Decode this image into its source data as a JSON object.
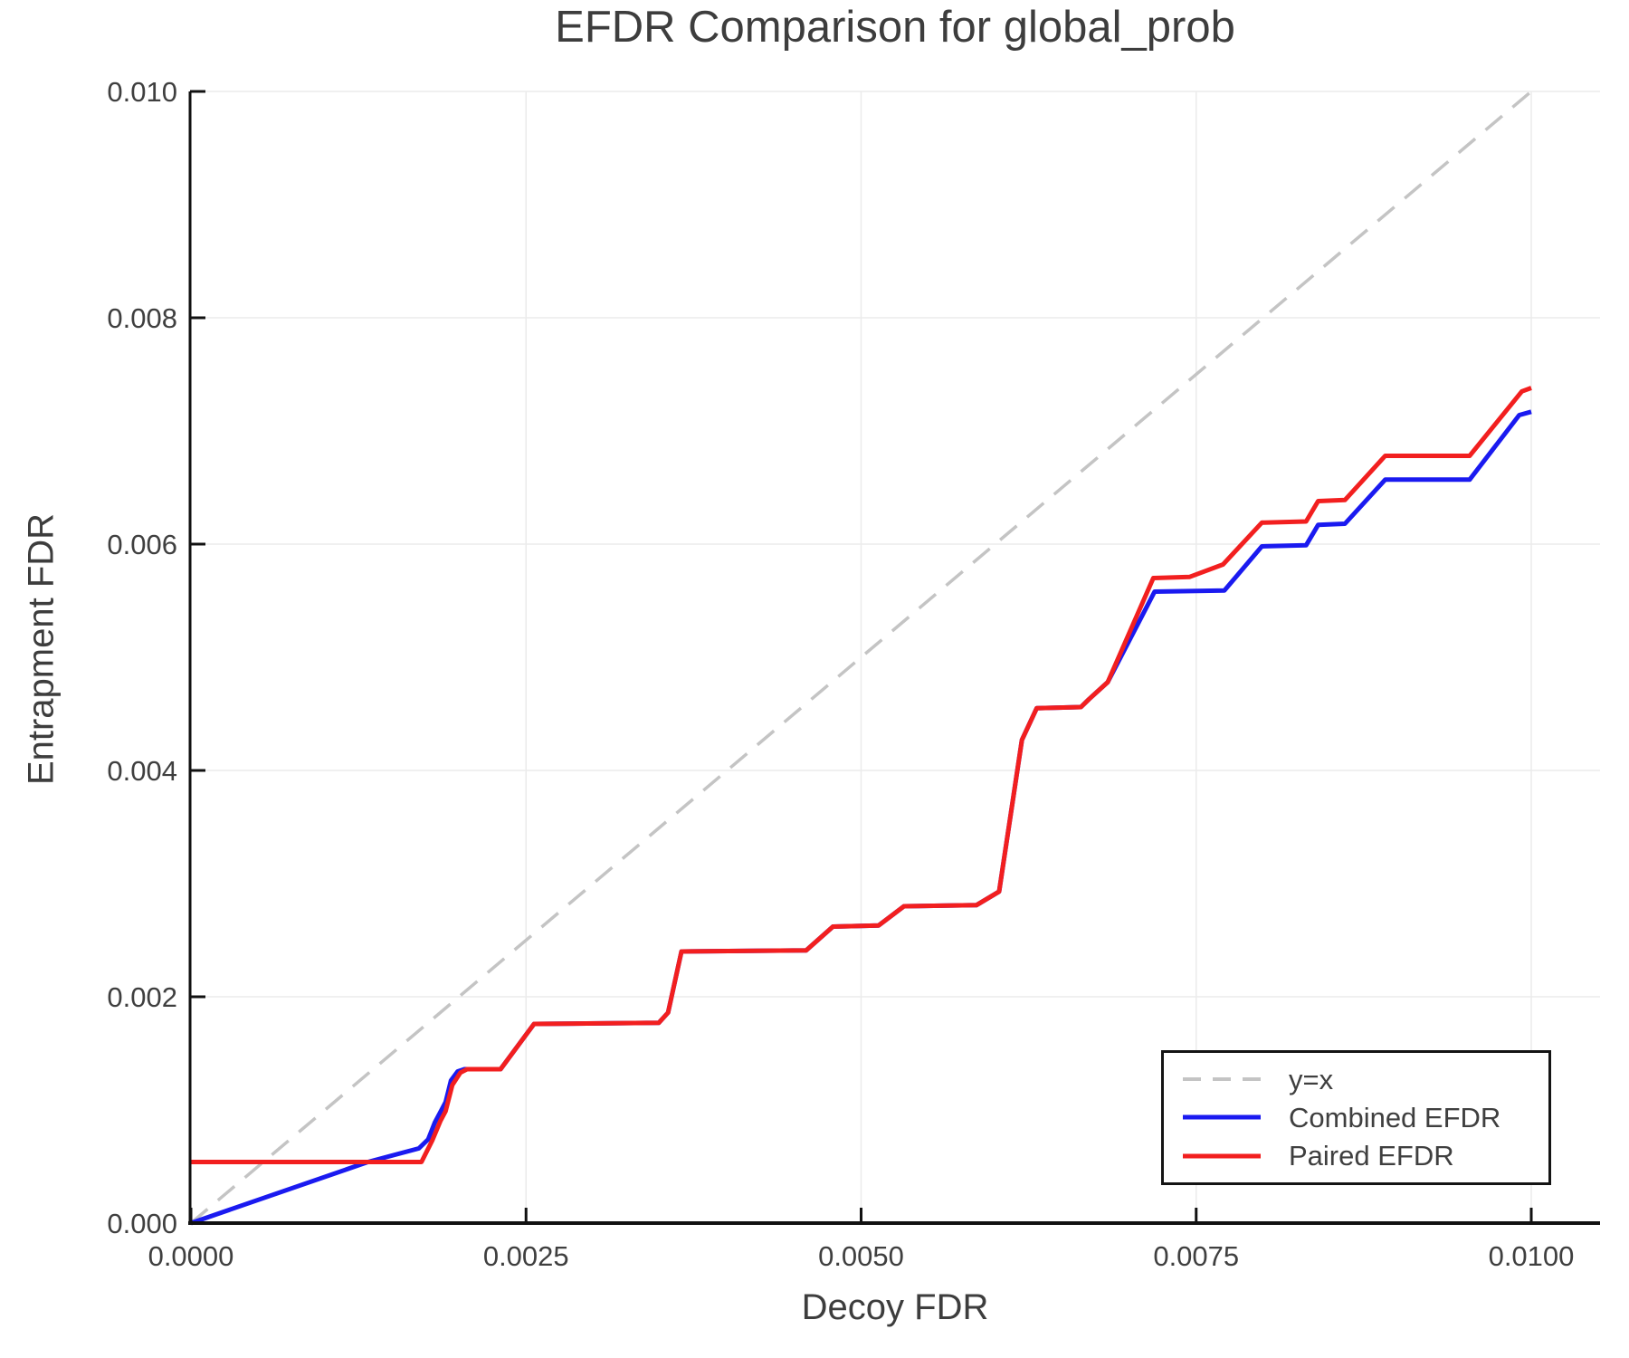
{
  "figure": {
    "background": "#ffffff",
    "text_color": "#3d3d3d",
    "tick_label_color": "#3f3f3f",
    "axis_color": "#111111",
    "grid_color": "#ebebeb"
  },
  "chart_data": {
    "type": "line",
    "title": "EFDR Comparison for global_prob",
    "xlabel": "Decoy FDR",
    "ylabel": "Entrapment FDR",
    "xlim": [
      0,
      0.01052
    ],
    "ylim": [
      0,
      0.01
    ],
    "grid": true,
    "legend_position": "lower right",
    "x_ticks": {
      "values": [
        0,
        0.0025,
        0.005,
        0.0075,
        0.01
      ],
      "labels": [
        "0.0000",
        "0.0025",
        "0.0050",
        "0.0075",
        "0.0100"
      ]
    },
    "y_ticks": {
      "values": [
        0,
        0.002,
        0.004,
        0.006,
        0.008,
        0.01
      ],
      "labels": [
        "0.000",
        "0.002",
        "0.004",
        "0.006",
        "0.008",
        "0.010"
      ]
    },
    "series": [
      {
        "id": "y-equals-x",
        "name": "y=x",
        "color": "#c4c4c4",
        "style": "dashed",
        "points": [
          [
            0,
            0
          ],
          [
            0.01,
            0.01
          ]
        ]
      },
      {
        "id": "combined-efdr",
        "name": "Combined EFDR",
        "color": "#1a1af0",
        "style": "solid",
        "points": [
          [
            0.0,
            0.0
          ],
          [
            0.00132,
            0.00054
          ],
          [
            0.0017,
            0.00066
          ],
          [
            0.00177,
            0.00074
          ],
          [
            0.00182,
            0.00089
          ],
          [
            0.00186,
            0.00098
          ],
          [
            0.0019,
            0.00107
          ],
          [
            0.00194,
            0.00126
          ],
          [
            0.00199,
            0.00134
          ],
          [
            0.00204,
            0.00136
          ],
          [
            0.00231,
            0.00136
          ],
          [
            0.00256,
            0.00176
          ],
          [
            0.00349,
            0.00177
          ],
          [
            0.00356,
            0.00186
          ],
          [
            0.00366,
            0.0024
          ],
          [
            0.00459,
            0.00241
          ],
          [
            0.00479,
            0.00262
          ],
          [
            0.00513,
            0.00263
          ],
          [
            0.00532,
            0.0028
          ],
          [
            0.00586,
            0.00281
          ],
          [
            0.00603,
            0.00293
          ],
          [
            0.0062,
            0.00427
          ],
          [
            0.00631,
            0.00455
          ],
          [
            0.00664,
            0.00456
          ],
          [
            0.0067,
            0.00463
          ],
          [
            0.00684,
            0.00478
          ],
          [
            0.00719,
            0.00558
          ],
          [
            0.00771,
            0.00559
          ],
          [
            0.00799,
            0.00598
          ],
          [
            0.00832,
            0.00599
          ],
          [
            0.00841,
            0.00617
          ],
          [
            0.00861,
            0.00618
          ],
          [
            0.00891,
            0.00657
          ],
          [
            0.00954,
            0.00657
          ],
          [
            0.00991,
            0.00714
          ],
          [
            0.01,
            0.00717
          ]
        ]
      },
      {
        "id": "paired-efdr",
        "name": "Paired EFDR",
        "color": "#f21f1f",
        "style": "solid",
        "points": [
          [
            0.0,
            0.00054
          ],
          [
            0.00172,
            0.00054
          ],
          [
            0.0018,
            0.00073
          ],
          [
            0.00186,
            0.0009
          ],
          [
            0.0019,
            0.00099
          ],
          [
            0.00195,
            0.00122
          ],
          [
            0.00201,
            0.00133
          ],
          [
            0.00206,
            0.00136
          ],
          [
            0.00231,
            0.00136
          ],
          [
            0.00256,
            0.00176
          ],
          [
            0.00349,
            0.00177
          ],
          [
            0.00356,
            0.00186
          ],
          [
            0.00366,
            0.0024
          ],
          [
            0.00459,
            0.00241
          ],
          [
            0.00479,
            0.00262
          ],
          [
            0.00513,
            0.00263
          ],
          [
            0.00532,
            0.0028
          ],
          [
            0.00586,
            0.00281
          ],
          [
            0.00603,
            0.00293
          ],
          [
            0.0062,
            0.00427
          ],
          [
            0.00631,
            0.00455
          ],
          [
            0.00664,
            0.00456
          ],
          [
            0.0067,
            0.00463
          ],
          [
            0.00684,
            0.00478
          ],
          [
            0.00718,
            0.0057
          ],
          [
            0.00745,
            0.00571
          ],
          [
            0.0077,
            0.00582
          ],
          [
            0.00799,
            0.00619
          ],
          [
            0.00832,
            0.0062
          ],
          [
            0.00841,
            0.00638
          ],
          [
            0.00861,
            0.00639
          ],
          [
            0.00891,
            0.00678
          ],
          [
            0.00954,
            0.00678
          ],
          [
            0.00993,
            0.00735
          ],
          [
            0.01,
            0.00738
          ]
        ]
      }
    ]
  }
}
